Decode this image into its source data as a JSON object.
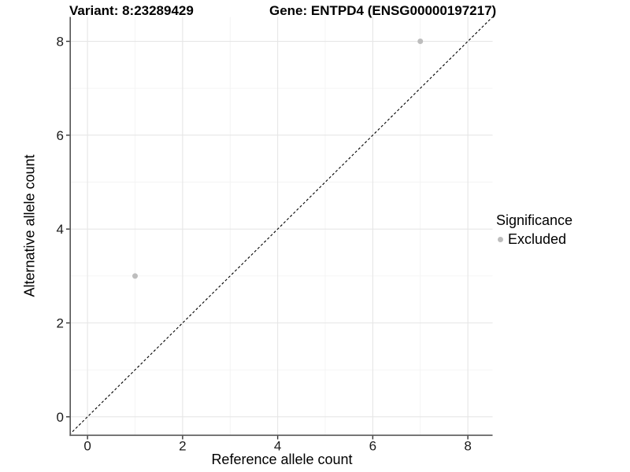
{
  "chart_data": {
    "type": "scatter",
    "title_left": "Variant: 8:23289429",
    "title_right": "Gene: ENTPD4 (ENSG00000197217)",
    "xlabel": "Reference allele count",
    "ylabel": "Alternative allele count",
    "x_ticks": [
      0,
      2,
      4,
      6,
      8
    ],
    "y_ticks": [
      0,
      2,
      4,
      6,
      8
    ],
    "x_minor_gridlines": [
      1,
      3,
      5,
      7
    ],
    "y_minor_gridlines": [
      1,
      3,
      5,
      7
    ],
    "xlim": [
      -0.35,
      8.52
    ],
    "ylim": [
      -0.38,
      8.52
    ],
    "grid": "major and minor gridlines, light gray on white",
    "reference_line": {
      "type": "identity y=x",
      "style": "dashed",
      "color": "#000000"
    },
    "series": [
      {
        "name": "Excluded",
        "marker": "circle",
        "color": "#bdbdbd",
        "points": [
          [
            1,
            3
          ],
          [
            7,
            8
          ]
        ]
      }
    ],
    "legend": {
      "title": "Significance",
      "position": "right",
      "items": [
        {
          "label": "Excluded",
          "color": "#bdbdbd"
        }
      ]
    }
  },
  "colors": {
    "background": "#ffffff",
    "axis_line": "#555555",
    "tick_mark": "#333333",
    "grid_major": "#e6e6e6",
    "grid_minor": "#f3f3f3",
    "text": "#000000",
    "point": "#bdbdbd"
  }
}
